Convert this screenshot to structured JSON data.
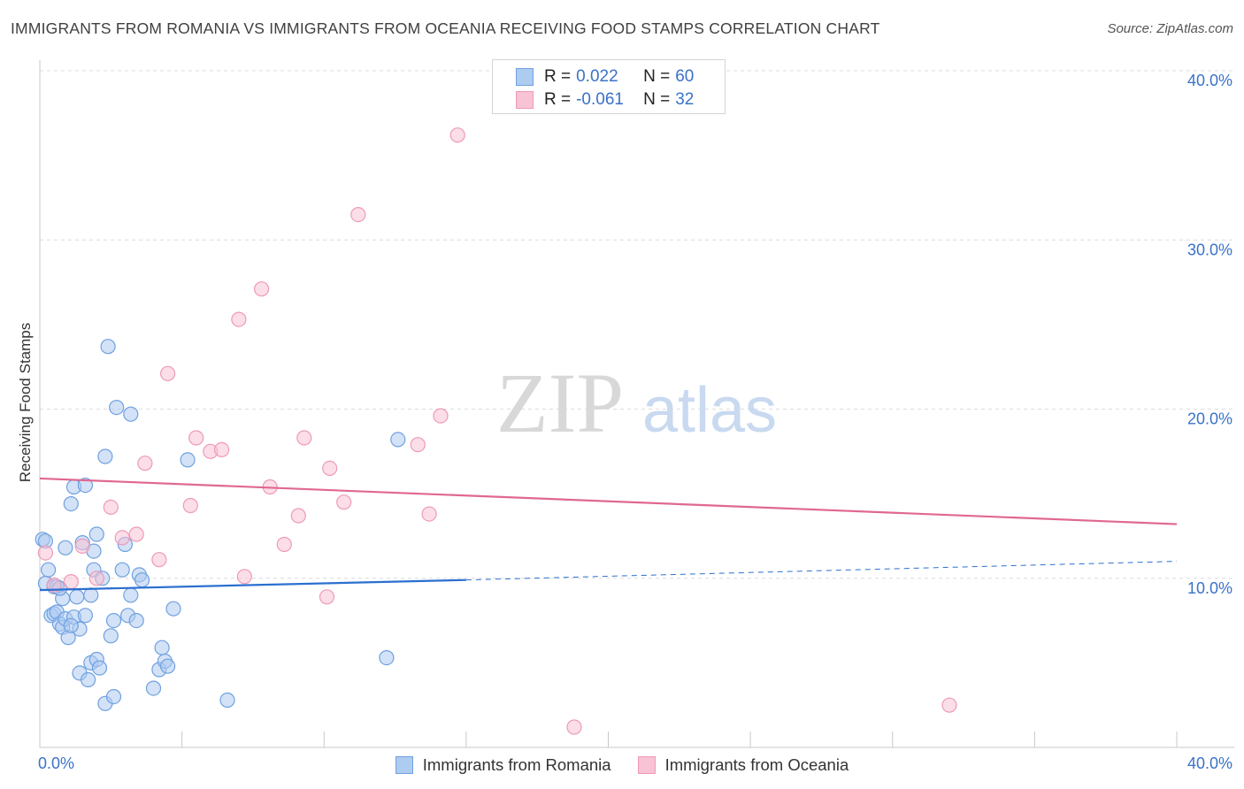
{
  "title": "IMMIGRANTS FROM ROMANIA VS IMMIGRANTS FROM OCEANIA RECEIVING FOOD STAMPS CORRELATION CHART",
  "source": "Source: ZipAtlas.com",
  "watermark": {
    "zip": "ZIP",
    "atlas": "atlas"
  },
  "legend": {
    "rows": [
      {
        "r_label": "R =",
        "r_value": "0.022",
        "n_label": "N =",
        "n_value": "60"
      },
      {
        "r_label": "R =",
        "r_value": "-0.061",
        "n_label": "N =",
        "n_value": "32"
      }
    ]
  },
  "chart_data": {
    "type": "scatter",
    "title": "IMMIGRANTS FROM ROMANIA VS IMMIGRANTS FROM OCEANIA RECEIVING FOOD STAMPS CORRELATION CHART",
    "xlabel": "",
    "ylabel": "Receiving Food Stamps",
    "xlim": [
      0,
      40
    ],
    "ylim": [
      0,
      40
    ],
    "x_tick_labels": [
      "0.0%",
      "40.0%"
    ],
    "y_ticks": [
      10,
      20,
      30,
      40
    ],
    "y_tick_labels": [
      "10.0%",
      "20.0%",
      "30.0%",
      "40.0%"
    ],
    "grid": true,
    "legend_position": "top-center",
    "series": [
      {
        "name": "Immigrants from Romania",
        "color": "#6fa1e0",
        "fill": "#aecbf0",
        "r": 0.022,
        "n": 60,
        "trend": {
          "x0": 0,
          "y0": 9.3,
          "x1": 15,
          "y1": 9.9,
          "dash_to_x": 40,
          "dash_to_y": 11.0,
          "color": "#2b6fd0"
        },
        "points": [
          [
            0.1,
            12.3
          ],
          [
            0.2,
            12.2
          ],
          [
            0.2,
            9.7
          ],
          [
            0.3,
            10.5
          ],
          [
            0.4,
            7.8
          ],
          [
            0.5,
            9.5
          ],
          [
            0.5,
            7.9
          ],
          [
            0.6,
            9.5
          ],
          [
            0.6,
            8.0
          ],
          [
            0.7,
            7.3
          ],
          [
            0.8,
            7.1
          ],
          [
            0.8,
            8.8
          ],
          [
            0.9,
            11.8
          ],
          [
            0.9,
            7.6
          ],
          [
            1.0,
            6.5
          ],
          [
            1.1,
            14.4
          ],
          [
            1.2,
            7.7
          ],
          [
            1.2,
            15.4
          ],
          [
            1.3,
            8.9
          ],
          [
            1.4,
            7.0
          ],
          [
            1.4,
            4.4
          ],
          [
            1.5,
            12.1
          ],
          [
            1.6,
            15.5
          ],
          [
            1.6,
            7.8
          ],
          [
            1.7,
            4.0
          ],
          [
            1.8,
            5.0
          ],
          [
            1.8,
            9.0
          ],
          [
            1.9,
            10.5
          ],
          [
            1.9,
            11.6
          ],
          [
            2.0,
            12.6
          ],
          [
            2.0,
            5.2
          ],
          [
            2.1,
            4.7
          ],
          [
            2.2,
            10.0
          ],
          [
            2.3,
            2.6
          ],
          [
            2.3,
            17.2
          ],
          [
            2.4,
            23.7
          ],
          [
            2.5,
            6.6
          ],
          [
            2.6,
            7.5
          ],
          [
            2.6,
            3.0
          ],
          [
            2.7,
            20.1
          ],
          [
            2.9,
            10.5
          ],
          [
            3.0,
            12.0
          ],
          [
            3.1,
            7.8
          ],
          [
            3.2,
            9.0
          ],
          [
            3.2,
            19.7
          ],
          [
            3.4,
            7.5
          ],
          [
            3.5,
            10.2
          ],
          [
            3.6,
            9.9
          ],
          [
            4.0,
            3.5
          ],
          [
            4.2,
            4.6
          ],
          [
            4.3,
            5.9
          ],
          [
            4.4,
            5.1
          ],
          [
            4.5,
            4.8
          ],
          [
            4.7,
            8.2
          ],
          [
            5.2,
            17.0
          ],
          [
            6.6,
            2.8
          ],
          [
            12.2,
            5.3
          ],
          [
            12.6,
            18.2
          ],
          [
            1.1,
            7.2
          ],
          [
            0.7,
            9.4
          ]
        ]
      },
      {
        "name": "Immigrants from Oceania",
        "color": "#ee9ab8",
        "fill": "#f7c3d5",
        "r": -0.061,
        "n": 32,
        "trend": {
          "x0": 0,
          "y0": 15.9,
          "x1": 40,
          "y1": 13.2,
          "color": "#e06890"
        },
        "points": [
          [
            0.2,
            11.5
          ],
          [
            0.5,
            9.6
          ],
          [
            1.1,
            9.8
          ],
          [
            1.5,
            11.9
          ],
          [
            2.0,
            10.0
          ],
          [
            2.5,
            14.2
          ],
          [
            2.9,
            12.4
          ],
          [
            3.4,
            12.6
          ],
          [
            3.7,
            16.8
          ],
          [
            4.2,
            11.1
          ],
          [
            4.5,
            22.1
          ],
          [
            5.3,
            14.3
          ],
          [
            5.5,
            18.3
          ],
          [
            6.0,
            17.5
          ],
          [
            6.4,
            17.6
          ],
          [
            7.0,
            25.3
          ],
          [
            7.2,
            10.1
          ],
          [
            7.8,
            27.1
          ],
          [
            8.1,
            15.4
          ],
          [
            8.6,
            12.0
          ],
          [
            9.1,
            13.7
          ],
          [
            9.3,
            18.3
          ],
          [
            10.1,
            8.9
          ],
          [
            10.2,
            16.5
          ],
          [
            10.7,
            14.5
          ],
          [
            11.2,
            31.5
          ],
          [
            13.3,
            17.9
          ],
          [
            13.7,
            13.8
          ],
          [
            14.1,
            19.6
          ],
          [
            14.7,
            36.2
          ],
          [
            18.8,
            1.2
          ],
          [
            32.0,
            2.5
          ]
        ]
      }
    ]
  }
}
